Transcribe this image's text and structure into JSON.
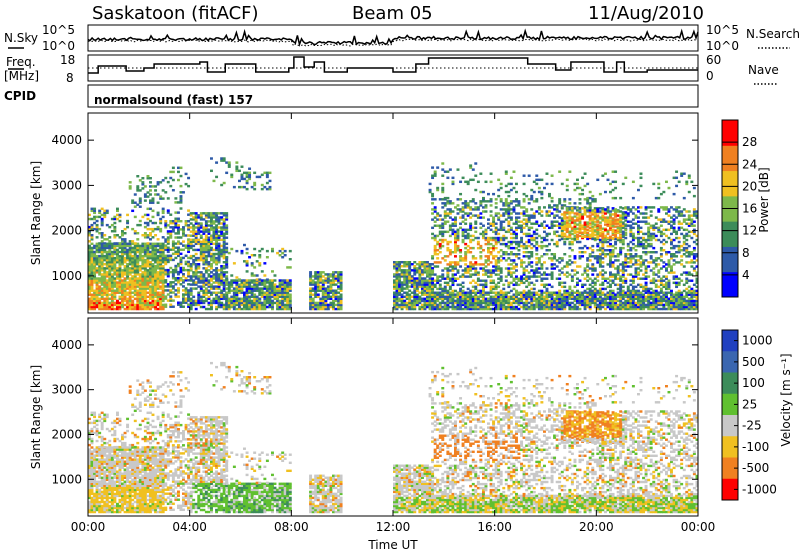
{
  "header": {
    "station": "Saskatoon (fitACF)",
    "beam": "Beam 05",
    "date": "11/Aug/2010"
  },
  "top_panels": {
    "nsky_label": "N.Sky",
    "nsearch_label": "N.Search",
    "freq_label_1": "Freq.",
    "freq_label_2": "[MHz]",
    "nave_label": "Nave",
    "cpid_label": "CPID",
    "cpid_text": "normalsound (fast) 157",
    "noise_ticks": [
      "10^5",
      "10^0"
    ],
    "freq_ticks": [
      "18",
      "8"
    ],
    "nave_ticks": [
      "60",
      "0"
    ]
  },
  "chart_data": [
    {
      "type": "heatmap",
      "name": "power",
      "ylabel": "Slant Range [km]",
      "xlabel": "",
      "colorbar_label": "Power [dB]",
      "x_ticks": [
        "00:00",
        "04:00",
        "08:00",
        "12:00",
        "16:00",
        "20:00",
        "00:00"
      ],
      "y_ticks": [
        1000,
        2000,
        3000,
        4000
      ],
      "ylim": [
        180,
        4600
      ],
      "xlim_hours": [
        0,
        24
      ],
      "colorbar_ticks": [
        4,
        8,
        12,
        16,
        20,
        24,
        28
      ],
      "colorbar_range": [
        0,
        32
      ],
      "colors": [
        "#0000ff",
        "#2e5aa8",
        "#3c8c5a",
        "#7db84a",
        "#f0c020",
        "#f08020",
        "#ff0000"
      ]
    },
    {
      "type": "heatmap",
      "name": "velocity",
      "ylabel": "Slant Range [km]",
      "xlabel": "Time UT",
      "colorbar_label": "Velocity [m s⁻¹]",
      "x_ticks": [
        "00:00",
        "04:00",
        "08:00",
        "12:00",
        "16:00",
        "20:00",
        "00:00"
      ],
      "y_ticks": [
        1000,
        2000,
        3000,
        4000
      ],
      "ylim": [
        180,
        4600
      ],
      "xlim_hours": [
        0,
        24
      ],
      "colorbar_ticks": [
        "1000",
        "500",
        "100",
        "25",
        "-25",
        "-100",
        "-500",
        "-1000"
      ],
      "colors": [
        "#2040c0",
        "#3a66b0",
        "#3c8c5a",
        "#60c030",
        "#c8c8c8",
        "#f0c020",
        "#f08020",
        "#ff0000"
      ]
    }
  ]
}
